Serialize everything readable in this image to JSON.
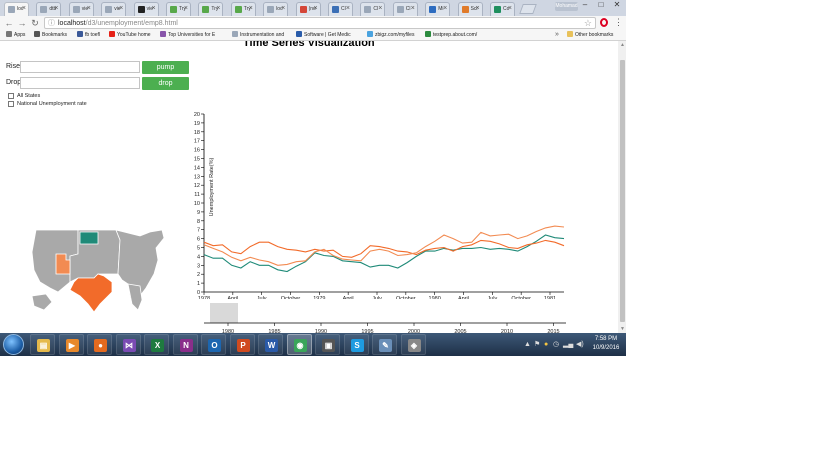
{
  "browser": {
    "tabs": [
      {
        "title": "loc",
        "favicon": "page-icon",
        "color": "#9aa7b8"
      },
      {
        "title": "dtb",
        "favicon": "page-icon",
        "color": "#9aa7b8"
      },
      {
        "title": "vie",
        "favicon": "page-icon",
        "color": "#9aa7b8"
      },
      {
        "title": "vie",
        "favicon": "page-icon",
        "color": "#9aa7b8"
      },
      {
        "title": "vie",
        "favicon": "github-icon",
        "color": "#222222"
      },
      {
        "title": "Try",
        "favicon": "green-icon",
        "color": "#58a84a"
      },
      {
        "title": "Try",
        "favicon": "green-icon",
        "color": "#58a84a"
      },
      {
        "title": "Try",
        "favicon": "green-icon",
        "color": "#58a84a"
      },
      {
        "title": "loc",
        "favicon": "page-icon",
        "color": "#9aa7b8"
      },
      {
        "title": "(no",
        "favicon": "gmail-icon",
        "color": "#d44638"
      },
      {
        "title": "Cl",
        "favicon": "p-icon",
        "color": "#3b6fb6"
      },
      {
        "title": "Cl",
        "favicon": "page-icon",
        "color": "#9aa7b8"
      },
      {
        "title": "Cl",
        "favicon": "page-icon",
        "color": "#9aa7b8"
      },
      {
        "title": "Mi",
        "favicon": "mail-icon",
        "color": "#2d6cc0"
      },
      {
        "title": "Sci",
        "favicon": "s-icon",
        "color": "#e07b2a"
      },
      {
        "title": "Co",
        "favicon": "c-icon",
        "color": "#1e8f5e"
      }
    ],
    "profile": "Mohamad",
    "url_host": "localhost",
    "url_path": "/d3/unemployment/emp8.html"
  },
  "bookmarks": [
    {
      "label": "Apps",
      "icon": "apps-icon",
      "color": "#777777"
    },
    {
      "label": "Bookmarks",
      "icon": "star-icon",
      "color": "#555555"
    },
    {
      "label": "fb toefl",
      "icon": "facebook-icon",
      "color": "#3b5998"
    },
    {
      "label": "YouTube home",
      "icon": "youtube-icon",
      "color": "#e62117"
    },
    {
      "label": "Top Universities for E",
      "icon": "university-icon",
      "color": "#8855aa"
    },
    {
      "label": "Instrumentation and",
      "icon": "page-icon",
      "color": "#9aa7b8"
    },
    {
      "label": "Software | Get Medic",
      "icon": "software-icon",
      "color": "#2a5caa"
    },
    {
      "label": "zbigz.com/myfiles",
      "icon": "cloud-icon",
      "color": "#4aa3df"
    },
    {
      "label": "testprep.about.com/",
      "icon": "about-icon",
      "color": "#2b8a3e"
    }
  ],
  "bookmarks_more": "»",
  "other_bookmarks": "Other bookmarks",
  "page": {
    "title": "Time Series Visualization",
    "rise_label": "Rise",
    "drop_label": "Drop",
    "rise_value": "",
    "drop_value": "",
    "pump_button": "pump",
    "drop_button": "drop",
    "checkbox_all_states": "All States",
    "checkbox_national": "National Unemployment rate",
    "map_colors": {
      "base": "#a9a9a9",
      "north_dakota": "#1f8a78",
      "texas": "#f26b2a",
      "utah": "#f28b52",
      "border": "#ffffff"
    }
  },
  "chart_data": {
    "type": "line",
    "ylabel": "Unemployment Rate(%)",
    "ylim": [
      0,
      20
    ],
    "yticks": [
      "0",
      "1",
      "2",
      "3",
      "4",
      "5",
      "6",
      "7",
      "8",
      "9",
      "10",
      "11",
      "12",
      "13",
      "14",
      "15",
      "16",
      "17",
      "18",
      "19",
      "20"
    ],
    "xticks": [
      "1978",
      "April",
      "July",
      "October",
      "1979",
      "April",
      "July",
      "October",
      "1980",
      "April",
      "July",
      "October",
      "1981"
    ],
    "x": [
      0,
      1,
      2,
      3,
      4,
      5,
      6,
      7,
      8,
      9,
      10,
      11,
      12,
      13,
      14,
      15,
      16,
      17,
      18,
      19,
      20,
      21,
      22,
      23,
      24,
      25,
      26,
      27,
      28,
      29,
      30,
      31,
      32,
      33,
      34,
      35,
      36,
      37,
      38,
      39
    ],
    "series": [
      {
        "color": "#1f8a78",
        "values": [
          4.2,
          3.8,
          3.8,
          3.0,
          2.7,
          3.4,
          3.0,
          3.0,
          2.5,
          2.3,
          2.9,
          3.4,
          4.4,
          4.1,
          4.0,
          3.5,
          3.4,
          3.3,
          2.8,
          3.0,
          3.0,
          2.7,
          3.3,
          4.0,
          4.6,
          4.6,
          4.9,
          4.7,
          4.9,
          4.9,
          5.0,
          4.8,
          4.9,
          4.8,
          4.6,
          5.1,
          5.7,
          6.4,
          6.1,
          6.0
        ]
      },
      {
        "color": "#f26b2a",
        "values": [
          5.6,
          5.2,
          5.3,
          4.5,
          4.3,
          5.1,
          5.6,
          5.6,
          5.1,
          4.8,
          4.7,
          4.5,
          4.8,
          4.6,
          4.7,
          4.0,
          3.9,
          4.3,
          5.2,
          5.1,
          4.9,
          4.6,
          4.5,
          4.2,
          4.7,
          4.9,
          5.0,
          4.6,
          5.1,
          5.3,
          5.8,
          5.7,
          5.4,
          5.0,
          4.9,
          5.3,
          5.5,
          5.8,
          5.6,
          5.2
        ]
      },
      {
        "color": "#f28b52",
        "values": [
          5.3,
          4.9,
          4.5,
          3.9,
          3.5,
          3.9,
          3.6,
          3.4,
          3.0,
          3.1,
          3.4,
          3.5,
          4.5,
          4.8,
          4.1,
          3.7,
          3.6,
          3.5,
          4.6,
          4.8,
          4.6,
          4.1,
          4.2,
          4.4,
          5.1,
          5.7,
          6.4,
          6.0,
          5.5,
          5.6,
          6.7,
          6.3,
          6.4,
          6.5,
          6.0,
          6.3,
          6.8,
          7.2,
          7.4,
          7.3
        ]
      }
    ],
    "brush_ticks": [
      "1980",
      "1985",
      "1990",
      "1995",
      "2000",
      "2005",
      "2010",
      "2015"
    ]
  },
  "taskbar": {
    "apps": [
      {
        "name": "explorer",
        "icon": "folder-icon",
        "color": "#e5b94b",
        "glyph": "▤"
      },
      {
        "name": "media",
        "icon": "media-icon",
        "color": "#e8892b",
        "glyph": "▶"
      },
      {
        "name": "firefox",
        "icon": "firefox-icon",
        "color": "#e46a1f",
        "glyph": "●"
      },
      {
        "name": "visual-studio",
        "icon": "vs-icon",
        "color": "#7a4bb3",
        "glyph": "⋈"
      },
      {
        "name": "excel",
        "icon": "excel-icon",
        "color": "#1e7a3f",
        "glyph": "X"
      },
      {
        "name": "onenote",
        "icon": "onenote-icon",
        "color": "#8a2e8a",
        "glyph": "N"
      },
      {
        "name": "outlook",
        "icon": "outlook-icon",
        "color": "#1c66b0",
        "glyph": "O"
      },
      {
        "name": "powerpoint",
        "icon": "powerpoint-icon",
        "color": "#d04a1f",
        "glyph": "P"
      },
      {
        "name": "word",
        "icon": "word-icon",
        "color": "#2a5aa8",
        "glyph": "W"
      },
      {
        "name": "chrome",
        "icon": "chrome-icon",
        "color": "#3aa55a",
        "glyph": "◉"
      },
      {
        "name": "video",
        "icon": "video-icon",
        "color": "#555555",
        "glyph": "▣"
      },
      {
        "name": "skype",
        "icon": "skype-icon",
        "color": "#1e9be0",
        "glyph": "S"
      },
      {
        "name": "notes",
        "icon": "notes-icon",
        "color": "#6a8fb8",
        "glyph": "✎"
      },
      {
        "name": "app",
        "icon": "app-icon",
        "color": "#888888",
        "glyph": "◈"
      }
    ],
    "time": "7:58 PM",
    "date": "10/9/2016"
  }
}
